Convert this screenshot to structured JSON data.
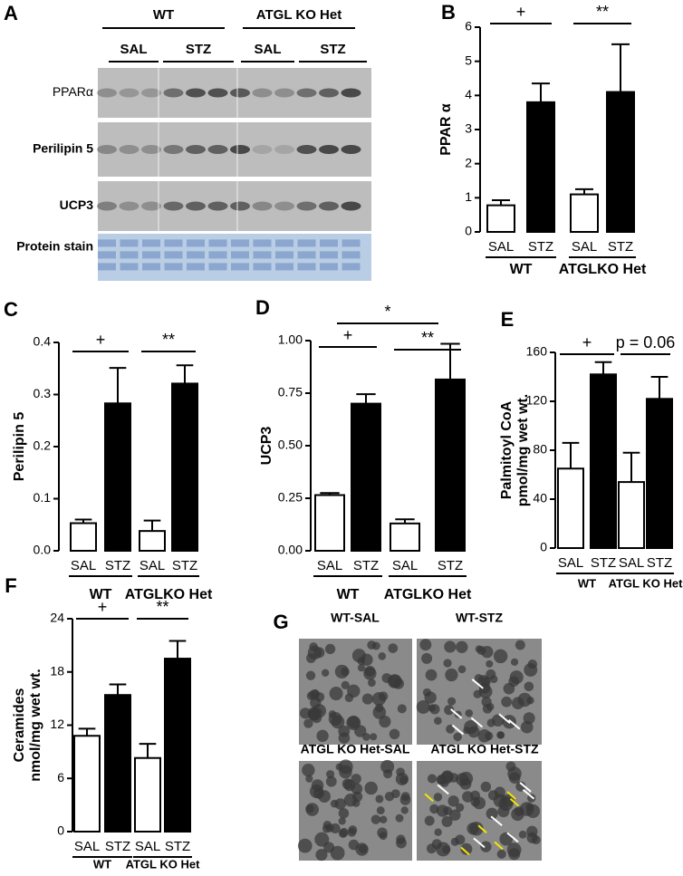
{
  "blot": {
    "panel": "A",
    "groups": [
      "WT",
      "ATGL KO Het"
    ],
    "treatments": [
      "SAL",
      "STZ",
      "SAL",
      "STZ"
    ],
    "rows": [
      "PPARα",
      "Perilipin 5",
      "UCP3",
      "Protein stain"
    ]
  },
  "chart_data": [
    {
      "type": "bar",
      "panel": "B",
      "ylabel": [
        "PPAR α"
      ],
      "categories": [
        "SAL",
        "STZ",
        "SAL",
        "STZ"
      ],
      "groups": [
        "WT",
        "ATGLKO Het"
      ],
      "values": [
        0.78,
        3.8,
        1.1,
        4.1
      ],
      "errors": [
        0.15,
        0.55,
        0.15,
        1.4
      ],
      "colors": [
        "#ffffff",
        "#000000",
        "#ffffff",
        "#000000"
      ],
      "ylim": [
        0,
        6
      ],
      "yticks": [
        0,
        1,
        2,
        3,
        4,
        5,
        6
      ],
      "annotations": [
        "+",
        "**"
      ]
    },
    {
      "type": "bar",
      "panel": "C",
      "ylabel": [
        "Perilipin 5"
      ],
      "categories": [
        "SAL",
        "STZ",
        "SAL",
        "STZ"
      ],
      "groups": [
        "WT",
        "ATGLKO Het"
      ],
      "values": [
        0.053,
        0.283,
        0.038,
        0.321
      ],
      "errors": [
        0.007,
        0.068,
        0.02,
        0.035
      ],
      "colors": [
        "#ffffff",
        "#000000",
        "#ffffff",
        "#000000"
      ],
      "ylim": [
        0,
        0.4
      ],
      "yticks": [
        {
          "value": 0,
          "label": "0.0"
        },
        0.1,
        0.2,
        0.3,
        0.4
      ],
      "annotations": [
        "+",
        "**"
      ]
    },
    {
      "type": "bar",
      "panel": "D",
      "ylabel": [
        "UCP3"
      ],
      "categories": [
        "SAL",
        "STZ",
        "SAL",
        "STZ"
      ],
      "groups": [
        "WT",
        "ATGLKO Het"
      ],
      "values": [
        0.265,
        0.7,
        0.13,
        0.815
      ],
      "errors": [
        0.01,
        0.045,
        0.02,
        0.17
      ],
      "colors": [
        "#ffffff",
        "#000000",
        "#ffffff",
        "#000000"
      ],
      "ylim": [
        0,
        1
      ],
      "yticks": [
        {
          "value": 0,
          "label": "0.00"
        },
        {
          "value": 0.25,
          "label": "0.25"
        },
        {
          "value": 0.5,
          "label": "0.50"
        },
        {
          "value": 0.75,
          "label": "0.75"
        },
        {
          "value": 1,
          "label": "1.00"
        }
      ],
      "annotations": [
        "+",
        "**",
        "*"
      ]
    },
    {
      "type": "bar",
      "panel": "E",
      "ylabel": [
        "Palmitoyl CoA",
        "pmol/mg wet wt."
      ],
      "categories": [
        "SAL",
        "STZ",
        "SAL",
        "STZ"
      ],
      "groups": [
        "WT",
        "ATGL KO Het"
      ],
      "values": [
        65,
        142,
        54,
        122
      ],
      "errors": [
        21,
        10,
        24,
        18
      ],
      "colors": [
        "#ffffff",
        "#000000",
        "#ffffff",
        "#000000"
      ],
      "ylim": [
        0,
        160
      ],
      "yticks": [
        0,
        40,
        80,
        120,
        160
      ],
      "annotations": [
        "+",
        "p = 0.06"
      ]
    },
    {
      "type": "bar",
      "panel": "F",
      "ylabel": [
        "Ceramides",
        "nmol/mg wet wt."
      ],
      "categories": [
        "SAL",
        "STZ",
        "SAL",
        "STZ"
      ],
      "groups": [
        "WT",
        "ATGL KO Het"
      ],
      "values": [
        10.8,
        15.4,
        8.3,
        19.5
      ],
      "errors": [
        0.8,
        1.2,
        1.6,
        2.0
      ],
      "colors": [
        "#ffffff",
        "#000000",
        "#ffffff",
        "#000000"
      ],
      "ylim": [
        0,
        24
      ],
      "yticks": [
        0,
        6,
        12,
        18,
        24
      ],
      "annotations": [
        "+",
        "**"
      ]
    }
  ],
  "micrographs": {
    "panel": "G",
    "labels": [
      "WT-SAL",
      "WT-STZ",
      "ATGL KO Het-SAL",
      "ATGL KO Het-STZ"
    ]
  }
}
